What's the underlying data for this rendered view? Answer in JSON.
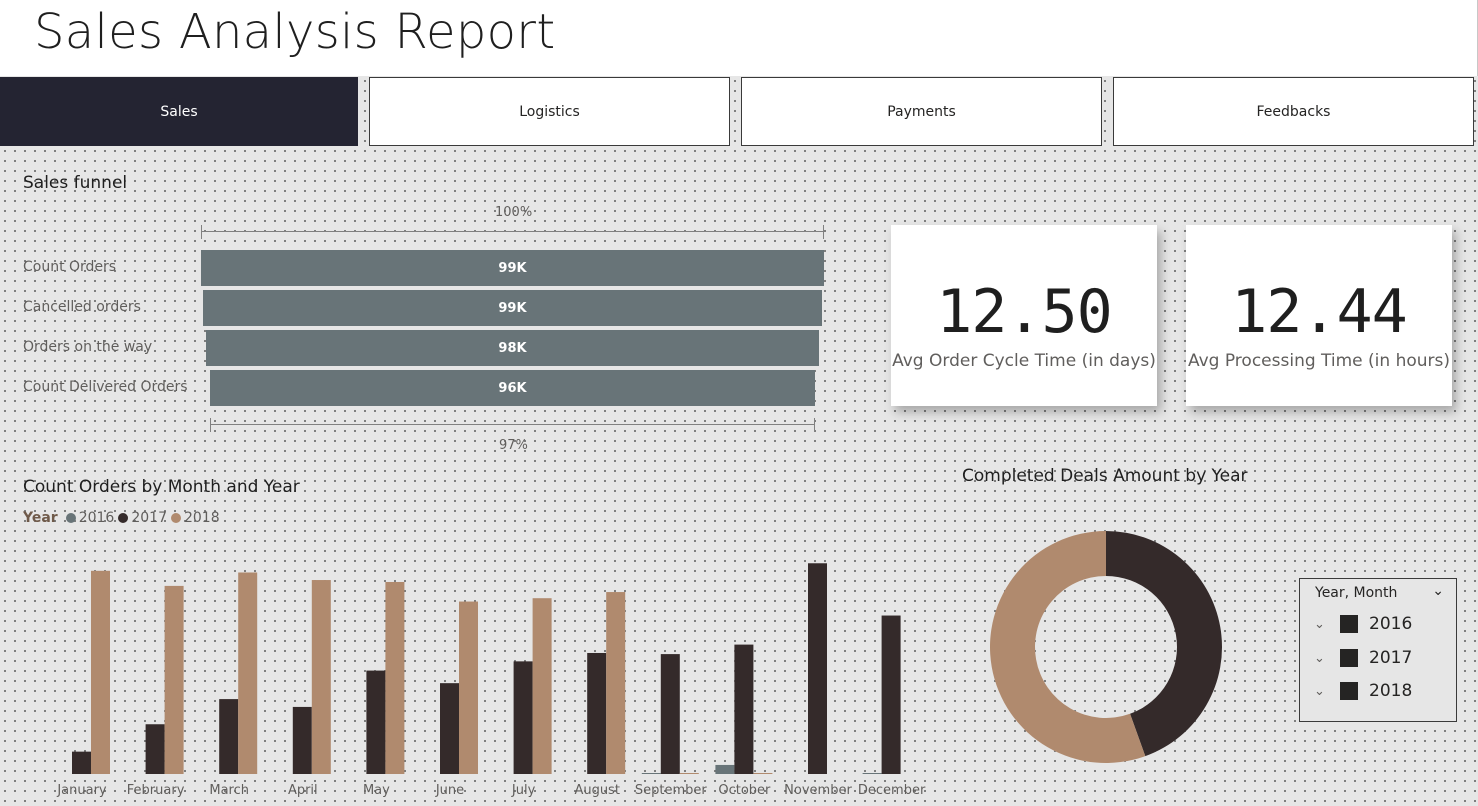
{
  "header": {
    "title": "Sales Analysis Report"
  },
  "tabs": [
    {
      "label": "Sales",
      "active": true
    },
    {
      "label": "Logistics",
      "active": false
    },
    {
      "label": "Payments",
      "active": false
    },
    {
      "label": "Feedbacks",
      "active": false
    }
  ],
  "funnel": {
    "title": "Sales funnel",
    "top_percent": "100%",
    "bottom_percent": "97%",
    "stages": [
      {
        "label": "Count Orders",
        "value": "99K",
        "fraction": 1.0
      },
      {
        "label": "Cancelled orders",
        "value": "99K",
        "fraction": 0.994
      },
      {
        "label": "Orders on the way",
        "value": "98K",
        "fraction": 0.985
      },
      {
        "label": "Count Delivered Orders",
        "value": "96K",
        "fraction": 0.97
      }
    ],
    "bar_color": "#687478"
  },
  "kpis": [
    {
      "value": "12.50",
      "label": "Avg Order Cycle Time (in days)"
    },
    {
      "value": "12.44",
      "label": "Avg Processing Time (in hours)"
    }
  ],
  "colors": {
    "y2016": "#687478",
    "y2017": "#342a2a",
    "y2018": "#b08a6e",
    "nav_active": "#242432"
  },
  "chart_data": [
    {
      "type": "bar",
      "title": "Count Orders by Month and Year",
      "legend_title": "Year",
      "legend_position": "top-left",
      "categories": [
        "January",
        "February",
        "March",
        "April",
        "May",
        "June",
        "July",
        "August",
        "September",
        "October",
        "November",
        "December"
      ],
      "series": [
        {
          "name": "2016",
          "color": "#687478",
          "values": [
            0,
            0,
            0,
            0,
            0,
            0,
            0,
            0,
            4,
            324,
            0,
            1
          ]
        },
        {
          "name": "2017",
          "color": "#342a2a",
          "values": [
            800,
            1780,
            2680,
            2400,
            3700,
            3250,
            4030,
            4330,
            4290,
            4630,
            7540,
            5670
          ]
        },
        {
          "name": "2018",
          "color": "#b08a6e",
          "values": [
            7270,
            6730,
            7210,
            6940,
            6870,
            6170,
            6290,
            6510,
            16,
            4,
            0,
            0
          ]
        }
      ],
      "ylim": [
        0,
        7800
      ],
      "grid": false
    },
    {
      "type": "pie",
      "title": "Completed Deals Amount by Year",
      "donut": true,
      "categories": [
        "2017",
        "2018"
      ],
      "values": [
        44.5,
        55.5
      ],
      "colors": [
        "#342a2a",
        "#b08a6e"
      ]
    }
  ],
  "slicer": {
    "header": "Year, Month",
    "items": [
      {
        "label": "2016"
      },
      {
        "label": "2017"
      },
      {
        "label": "2018"
      }
    ]
  }
}
